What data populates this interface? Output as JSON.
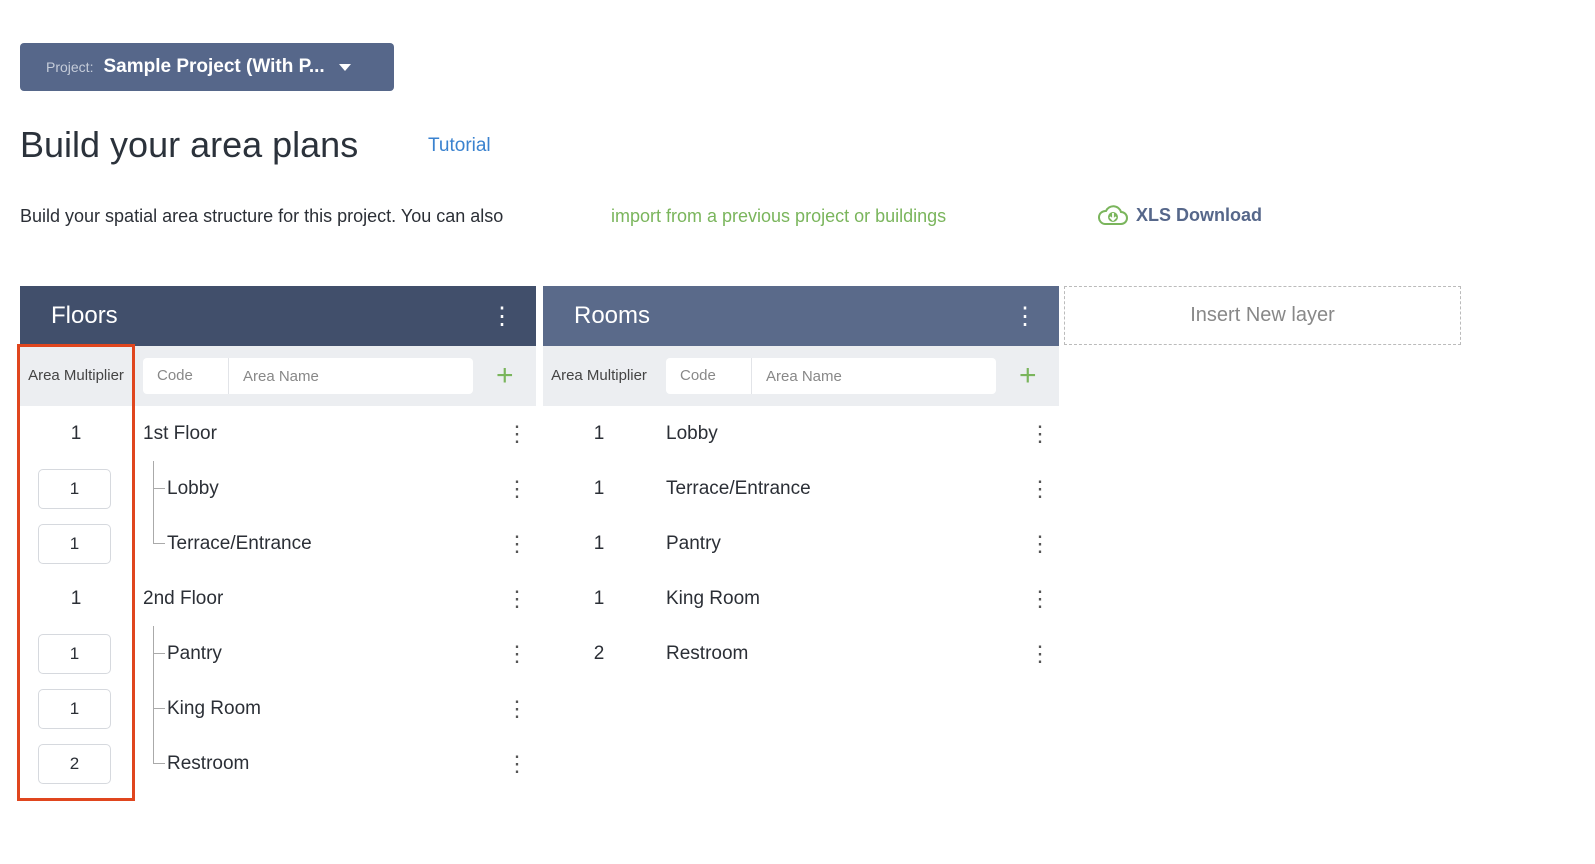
{
  "project": {
    "label": "Project:",
    "value": "Sample Project (With P..."
  },
  "title": "Build your area plans",
  "tutorial": "Tutorial",
  "description": "Build your spatial area structure for this project. You can also",
  "import_link": "import from a previous project or buildings",
  "xls": "XLS Download",
  "colors": {
    "floors_header": "#414f6b",
    "rooms_header": "#5a6a8a",
    "accent_green": "#7ab55c",
    "highlight": "#e0461e"
  },
  "floors": {
    "title": "Floors",
    "multiplier_header": "Area Multiplier",
    "code_placeholder": "Code",
    "name_placeholder": "Area Name",
    "rows": [
      {
        "mult": "1",
        "name": "1st Floor",
        "level": 0
      },
      {
        "mult": "1",
        "name": "Lobby",
        "level": 1
      },
      {
        "mult": "1",
        "name": "Terrace/Entrance",
        "level": 1
      },
      {
        "mult": "1",
        "name": "2nd Floor",
        "level": 0
      },
      {
        "mult": "1",
        "name": "Pantry",
        "level": 1
      },
      {
        "mult": "1",
        "name": "King Room",
        "level": 1
      },
      {
        "mult": "2",
        "name": "Restroom",
        "level": 1
      }
    ]
  },
  "rooms": {
    "title": "Rooms",
    "multiplier_header": "Area Multiplier",
    "code_placeholder": "Code",
    "name_placeholder": "Area Name",
    "rows": [
      {
        "mult": "1",
        "name": "Lobby"
      },
      {
        "mult": "1",
        "name": "Terrace/Entrance"
      },
      {
        "mult": "1",
        "name": "Pantry"
      },
      {
        "mult": "1",
        "name": "King Room"
      },
      {
        "mult": "2",
        "name": "Restroom"
      }
    ]
  },
  "insert_layer": "Insert New layer"
}
